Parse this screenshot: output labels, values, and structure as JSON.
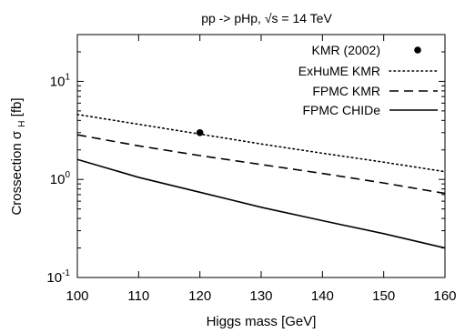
{
  "chart_data": {
    "type": "line",
    "title": "pp -> pHp, √s = 14 TeV",
    "xlabel": "Higgs mass [GeV]",
    "ylabel": {
      "main": "Crossection σ",
      "subscript": "H",
      "unit": " [fb]"
    },
    "x_scale": "linear",
    "y_scale": "log",
    "xlim": [
      100,
      160
    ],
    "ylim": [
      0.1,
      30
    ],
    "x_ticks": [
      100,
      110,
      120,
      130,
      140,
      150,
      160
    ],
    "x_tick_labels": [
      "100",
      "110",
      "120",
      "130",
      "140",
      "150",
      "160"
    ],
    "y_ticks": [
      {
        "value": 0.1,
        "base": "10",
        "exponent": "-1"
      },
      {
        "value": 1,
        "base": "10",
        "exponent": "0"
      },
      {
        "value": 10,
        "base": "10",
        "exponent": "1"
      }
    ],
    "grid": false,
    "legend_position": "top-right",
    "series": [
      {
        "name": "KMR (2002)",
        "kind": "marker",
        "style": "filled-circle",
        "color": "#000000",
        "x": [
          120
        ],
        "y": [
          3.0
        ]
      },
      {
        "name": "ExHuME KMR",
        "kind": "line",
        "style": "dotted",
        "color": "#000000",
        "x": [
          100,
          110,
          120,
          130,
          140,
          150,
          160
        ],
        "y": [
          4.6,
          3.65,
          2.9,
          2.3,
          1.85,
          1.5,
          1.2
        ]
      },
      {
        "name": "FPMC KMR",
        "kind": "line",
        "style": "dashed",
        "color": "#000000",
        "x": [
          100,
          110,
          120,
          130,
          140,
          150,
          160
        ],
        "y": [
          2.85,
          2.2,
          1.75,
          1.42,
          1.15,
          0.92,
          0.72
        ]
      },
      {
        "name": "FPMC CHIDe",
        "kind": "line",
        "style": "solid",
        "color": "#000000",
        "x": [
          100,
          110,
          120,
          130,
          140,
          150,
          160
        ],
        "y": [
          1.6,
          1.05,
          0.74,
          0.52,
          0.38,
          0.28,
          0.2
        ]
      }
    ]
  }
}
